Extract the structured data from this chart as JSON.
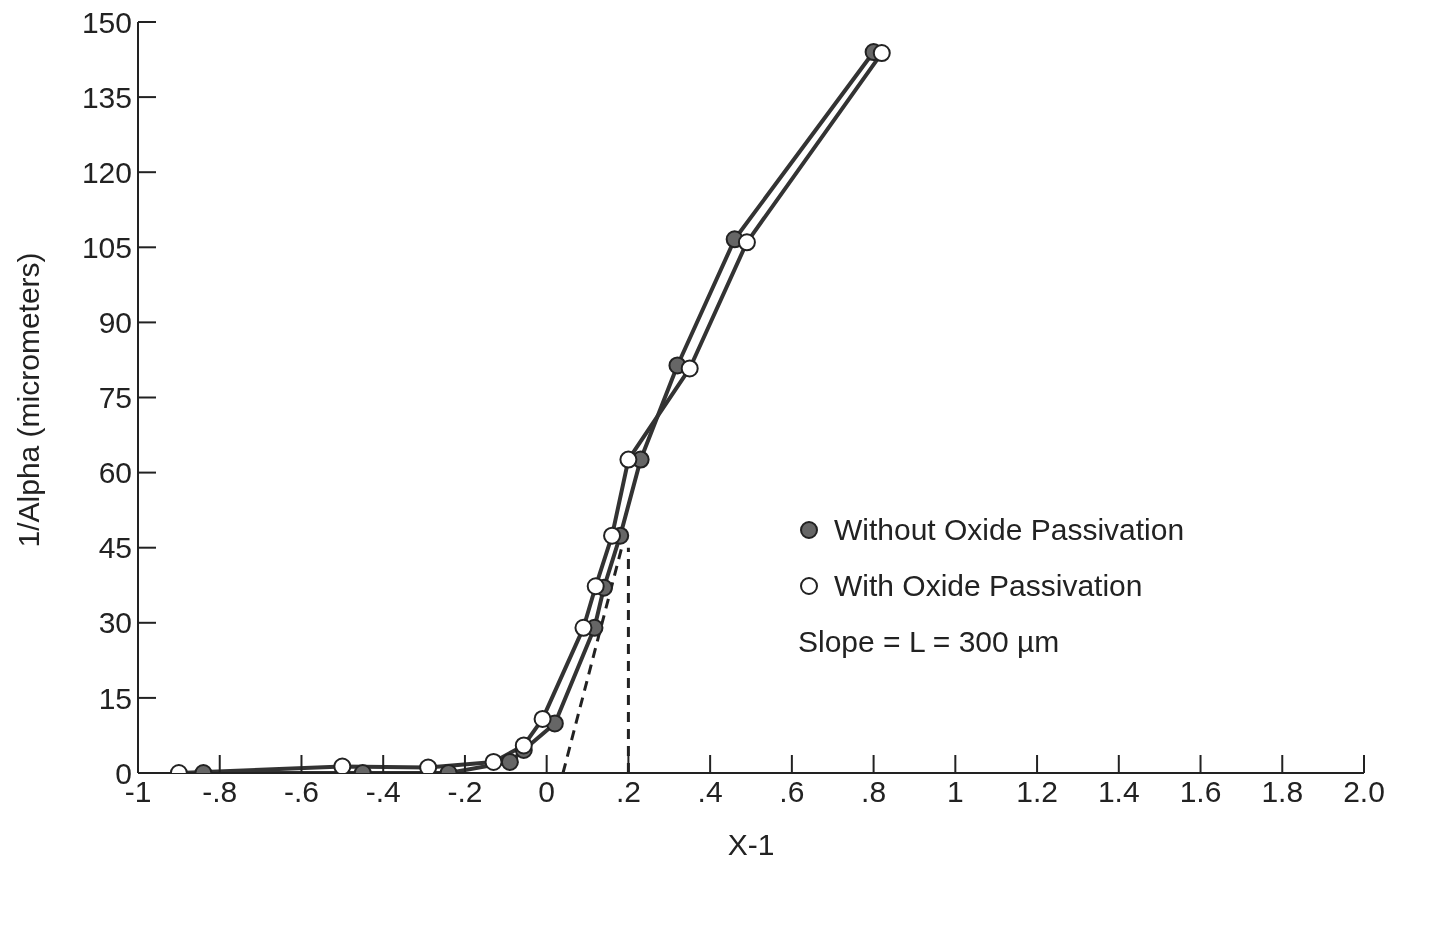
{
  "chart_data": {
    "type": "line",
    "xlabel": "X-1",
    "ylabel": "1/Alpha (micrometers)",
    "xlim": [
      -1,
      2
    ],
    "xticks": [
      {
        "value": -1,
        "label": "-1"
      },
      {
        "value": -0.8,
        "label": "-.8"
      },
      {
        "value": -0.6,
        "label": "-.6"
      },
      {
        "value": -0.4,
        "label": "-.4"
      },
      {
        "value": -0.2,
        "label": "-.2"
      },
      0,
      {
        "value": 0.2,
        "label": ".2"
      },
      {
        "value": 0.4,
        "label": ".4"
      },
      {
        "value": 0.6,
        "label": ".6"
      },
      {
        "value": 0.8,
        "label": ".8"
      },
      1,
      {
        "value": 1.2,
        "label": "1.2"
      },
      {
        "value": 1.4,
        "label": "1.4"
      },
      {
        "value": 1.6,
        "label": "1.6"
      },
      {
        "value": 1.8,
        "label": "1.8"
      },
      {
        "value": 2,
        "label": "2.0"
      }
    ],
    "ylim": [
      0,
      150
    ],
    "yticks": [
      0,
      15,
      30,
      45,
      60,
      75,
      90,
      105,
      120,
      135,
      150
    ],
    "marker": "circle",
    "legend": "right",
    "annotations": [
      "Slope = L = 300 µm"
    ],
    "series": [
      {
        "name": "Without Oxide Passivation",
        "color": "#666666",
        "x": [
          -0.84,
          -0.45,
          -0.24,
          -0.09,
          -0.056,
          0.02,
          0.117,
          0.14,
          0.18,
          0.23,
          0.32,
          0.46,
          0.8
        ],
        "values": [
          0,
          0,
          0,
          2.2,
          4.6,
          9.9,
          29,
          37,
          47.4,
          62.6,
          81.4,
          106.6,
          144
        ]
      },
      {
        "name": "With Oxide Passivation",
        "color": "#ffffff",
        "x": [
          -0.9,
          -0.5,
          -0.29,
          -0.13,
          -0.056,
          -0.01,
          0.09,
          0.12,
          0.16,
          0.2,
          0.35,
          0.49,
          0.82
        ],
        "values": [
          0,
          1.3,
          1.1,
          2.2,
          5.5,
          10.8,
          29,
          37.3,
          47.4,
          62.6,
          80.8,
          106,
          143.8
        ]
      },
      {
        "type": "line",
        "color": "#222222",
        "line_style": "dashed",
        "marker": "none",
        "x": [
          0.04,
          0.19
        ],
        "values": [
          0,
          47
        ]
      },
      {
        "type": "line",
        "color": "#222222",
        "line_style": "dashed",
        "marker": "none",
        "x": [
          0.2,
          0.2
        ],
        "values": [
          0,
          45
        ]
      }
    ]
  }
}
